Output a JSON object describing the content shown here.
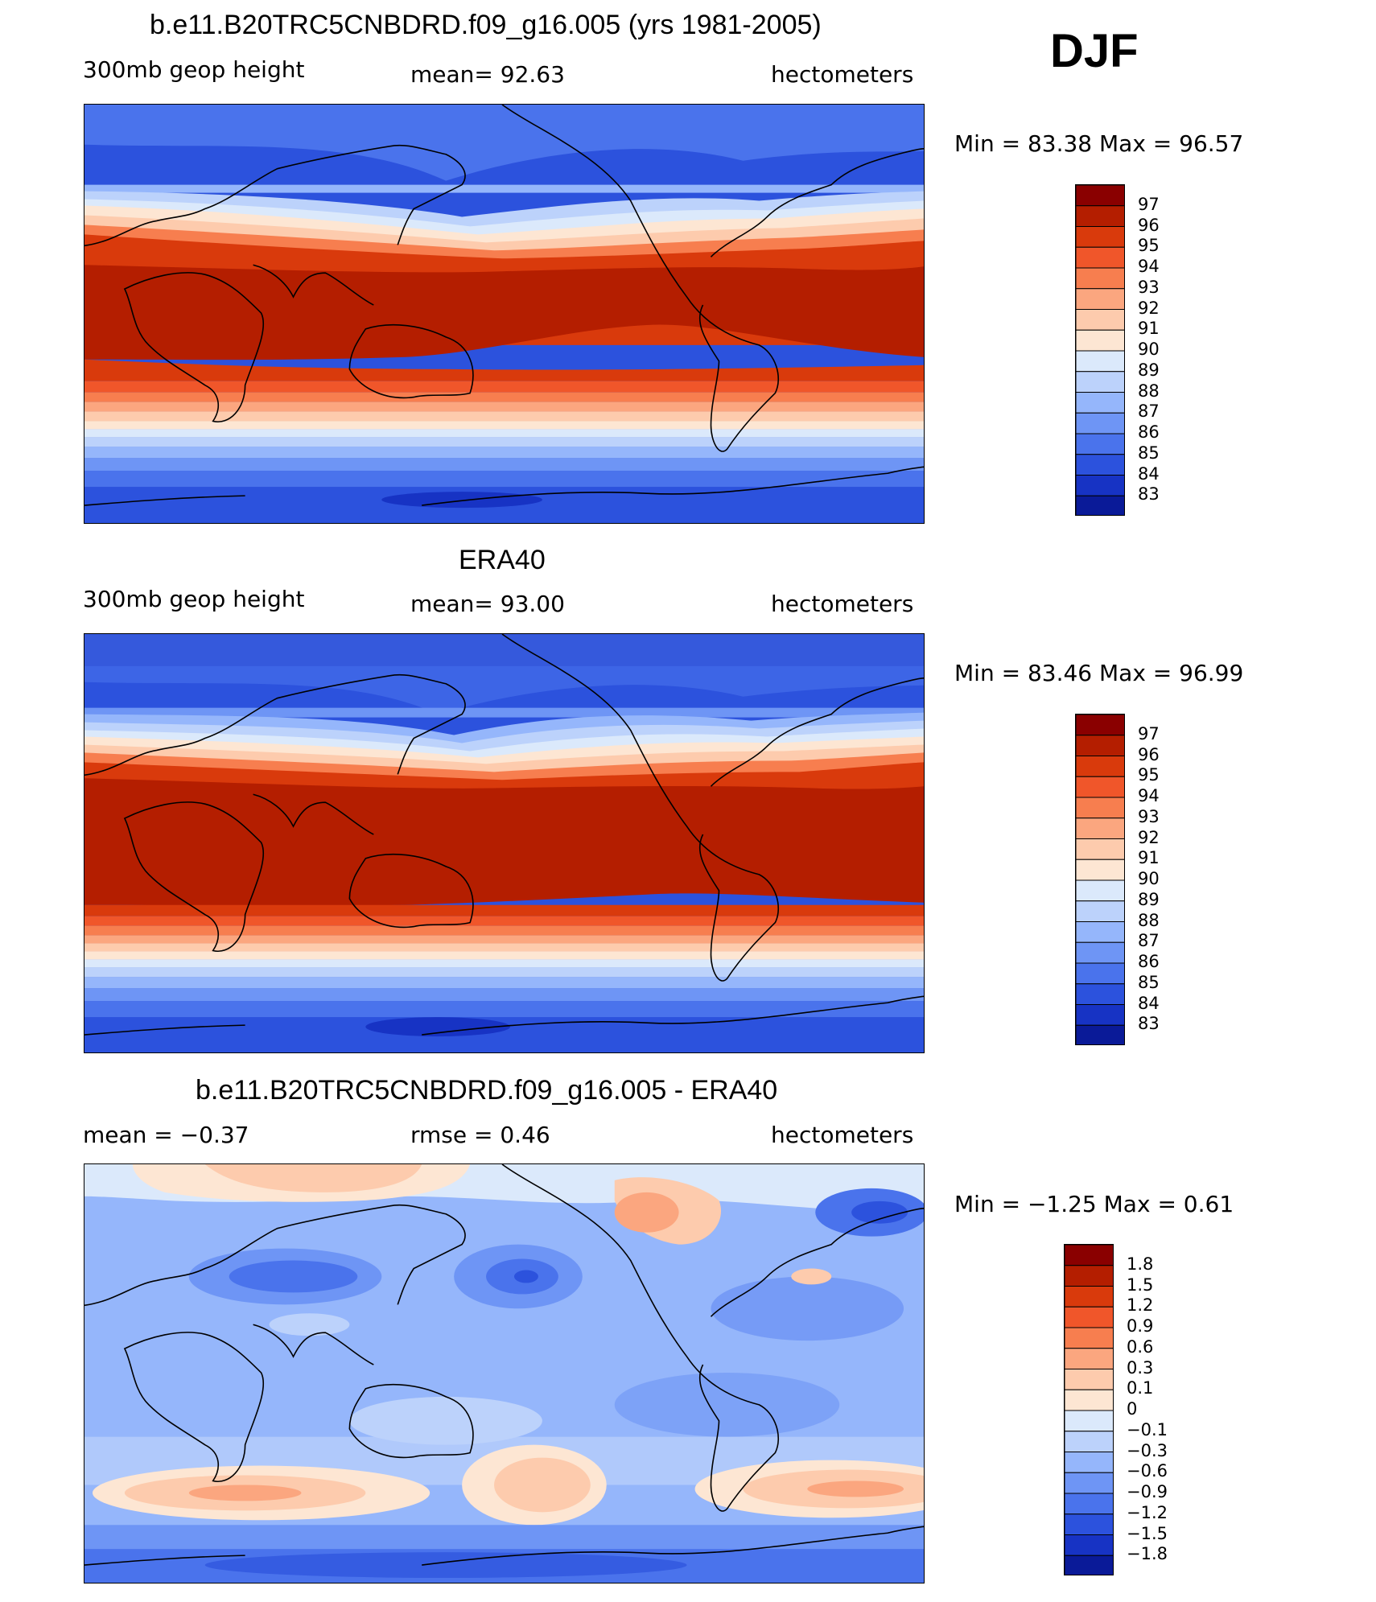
{
  "season": "DJF",
  "panels": [
    {
      "title": "b.e11.B20TRC5CNBDRD.f09_g16.005 (yrs 1981-2005)",
      "left": "300mb  geop  height",
      "center": "mean=   92.63",
      "right": "hectometers",
      "minmax": "Min  =    83.38  Max  =    96.57",
      "legend": [
        "97",
        "96",
        "95",
        "94",
        "93",
        "92",
        "91",
        "90",
        "89",
        "88",
        "87",
        "86",
        "85",
        "84",
        "83"
      ]
    },
    {
      "title": "ERA40",
      "left": "300mb  geop  height",
      "center": "mean=   93.00",
      "right": "hectometers",
      "minmax": "Min  =    83.46  Max  =    96.99",
      "legend": [
        "97",
        "96",
        "95",
        "94",
        "93",
        "92",
        "91",
        "90",
        "89",
        "88",
        "87",
        "86",
        "85",
        "84",
        "83"
      ]
    },
    {
      "title": "b.e11.B20TRC5CNBDRD.f09_g16.005 - ERA40",
      "left": "mean  =    −0.37",
      "center": "rmse  =     0.46",
      "right": "hectometers",
      "minmax": "Min  =    −1.25  Max  =     0.61",
      "legend": [
        "1.8",
        "1.5",
        "1.2",
        "0.9",
        "0.6",
        "0.3",
        "0.1",
        "0",
        "−0.1",
        "−0.3",
        "−0.6",
        "−0.9",
        "−1.2",
        "−1.5",
        "−1.8"
      ]
    }
  ],
  "colors": {
    "scale": [
      "#8a0000",
      "#b41e00",
      "#d93a0c",
      "#f0562a",
      "#f77e4f",
      "#fba67f",
      "#fdcbad",
      "#fde6d3",
      "#dbe9fb",
      "#bcd2fb",
      "#95b6fb",
      "#6e95f5",
      "#4a73ec",
      "#2c52dd",
      "#1733c4",
      "#0a1a98"
    ]
  }
}
